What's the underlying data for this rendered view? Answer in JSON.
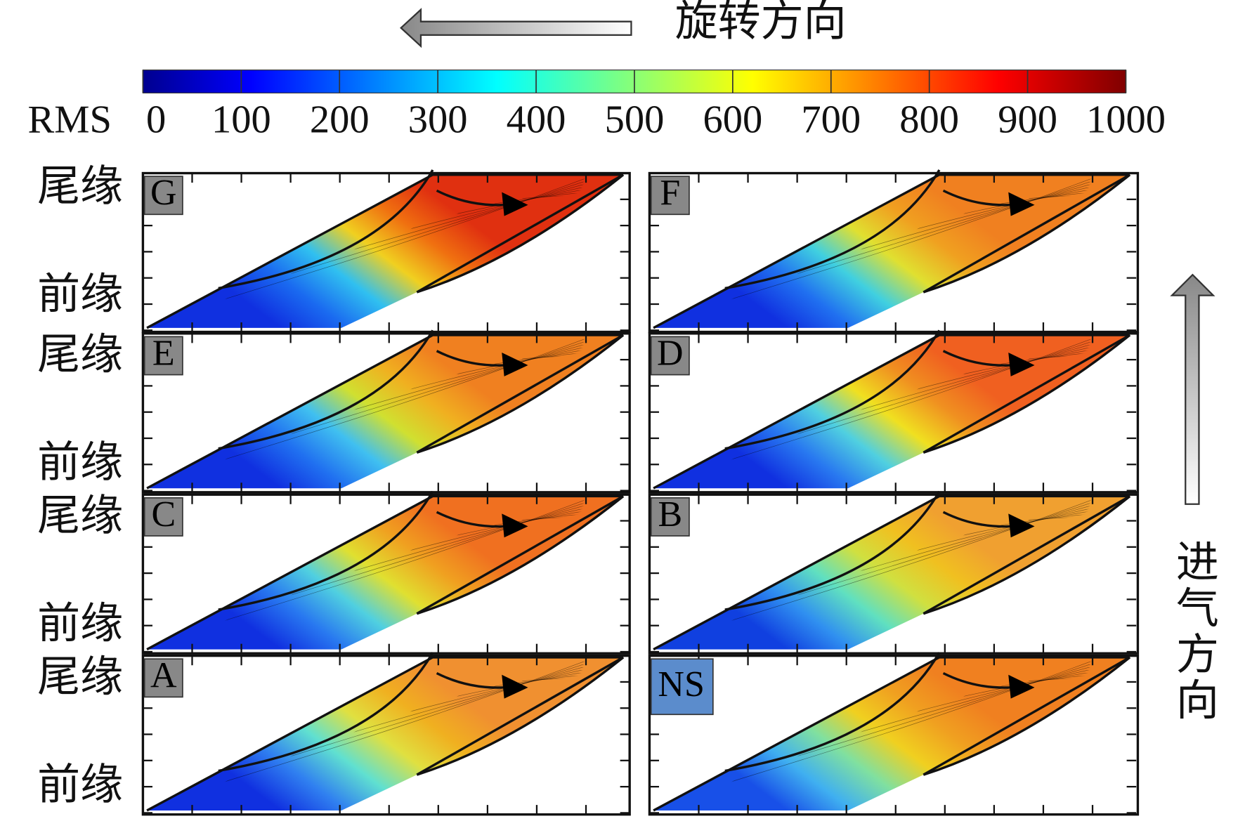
{
  "title": "旋转方向",
  "colorbar": {
    "label": "RMS",
    "range": [
      0,
      1000
    ],
    "ticks": [
      0,
      100,
      200,
      300,
      400,
      500,
      600,
      700,
      800,
      900,
      1000
    ]
  },
  "side_labels": {
    "trailing": "尾缘",
    "leading": "前缘"
  },
  "inflow_label": "进气方向",
  "panels": [
    {
      "label": "G"
    },
    {
      "label": "F"
    },
    {
      "label": "E"
    },
    {
      "label": "D"
    },
    {
      "label": "C"
    },
    {
      "label": "B"
    },
    {
      "label": "A"
    },
    {
      "label": "NS"
    }
  ]
}
